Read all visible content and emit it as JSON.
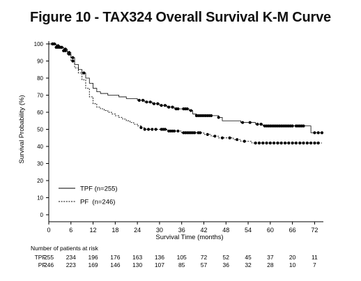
{
  "figure_title": "Figure 10 - TAX324 Overall Survival K-M Curve",
  "chart_data": {
    "type": "line",
    "title": "Figure 10 - TAX324 Overall Survival K-M Curve",
    "xlabel": "Survival Time (months)",
    "ylabel": "Survival Probability (%)",
    "xlim": [
      0,
      74
    ],
    "ylim": [
      0,
      100
    ],
    "x_ticks": [
      0,
      6,
      12,
      18,
      24,
      30,
      36,
      42,
      48,
      54,
      60,
      66,
      72
    ],
    "y_ticks": [
      0,
      10,
      20,
      30,
      40,
      50,
      60,
      70,
      80,
      90,
      100
    ],
    "grid": false,
    "legend_position": "bottom-left",
    "series": [
      {
        "name": "TPF (n=255)",
        "style": "solid",
        "points": [
          [
            0,
            100
          ],
          [
            2,
            99
          ],
          [
            3,
            98
          ],
          [
            4,
            97
          ],
          [
            5,
            95
          ],
          [
            6,
            92
          ],
          [
            7,
            88
          ],
          [
            8,
            85
          ],
          [
            9,
            83
          ],
          [
            10,
            80
          ],
          [
            11,
            77
          ],
          [
            12,
            74
          ],
          [
            13,
            72
          ],
          [
            14,
            71
          ],
          [
            15,
            71
          ],
          [
            16,
            70
          ],
          [
            18,
            70
          ],
          [
            19,
            69
          ],
          [
            20,
            69
          ],
          [
            21,
            68
          ],
          [
            22,
            68
          ],
          [
            24,
            67
          ],
          [
            26,
            66
          ],
          [
            28,
            65
          ],
          [
            30,
            64
          ],
          [
            32,
            63
          ],
          [
            34,
            62
          ],
          [
            36,
            62
          ],
          [
            38,
            61
          ],
          [
            39,
            59
          ],
          [
            40,
            58
          ],
          [
            44,
            58
          ],
          [
            46,
            57
          ],
          [
            47,
            55
          ],
          [
            49,
            55
          ],
          [
            52,
            54
          ],
          [
            54,
            54
          ],
          [
            56,
            53
          ],
          [
            58,
            52
          ],
          [
            66,
            52
          ],
          [
            70,
            52
          ],
          [
            71,
            48
          ],
          [
            74,
            48
          ]
        ],
        "censored_x": [
          1,
          1.5,
          2.5,
          3.5,
          4.5,
          5.5,
          6.5,
          9.5,
          24.5,
          25.5,
          26.5,
          27.5,
          28.5,
          29.5,
          30.5,
          31.5,
          32.5,
          33.5,
          34.5,
          35,
          36.5,
          37,
          37.5,
          38.5,
          40,
          40.5,
          41,
          41.5,
          42,
          42.5,
          43,
          43.5,
          44,
          46,
          52.5,
          54.5,
          56.5,
          57.5,
          58.5,
          59,
          59.5,
          60,
          60.5,
          61,
          61.5,
          62,
          62.5,
          63,
          63.5,
          64,
          64.5,
          65,
          65.5,
          66,
          67,
          67.5,
          68,
          68.5,
          69,
          72,
          73,
          74
        ]
      },
      {
        "name": "PF  (n=246)",
        "style": "dashed",
        "points": [
          [
            0,
            100
          ],
          [
            2,
            98
          ],
          [
            4,
            96
          ],
          [
            5,
            94
          ],
          [
            6,
            90
          ],
          [
            7,
            86
          ],
          [
            8,
            83
          ],
          [
            9,
            79
          ],
          [
            10,
            74
          ],
          [
            11,
            69
          ],
          [
            12,
            65
          ],
          [
            13,
            63
          ],
          [
            14,
            62
          ],
          [
            15,
            61
          ],
          [
            16,
            60
          ],
          [
            17,
            59
          ],
          [
            18,
            58
          ],
          [
            19,
            57
          ],
          [
            20,
            56
          ],
          [
            21,
            55
          ],
          [
            22,
            54
          ],
          [
            23,
            53
          ],
          [
            24,
            52
          ],
          [
            25,
            51
          ],
          [
            26,
            50
          ],
          [
            30,
            50
          ],
          [
            32,
            49
          ],
          [
            34,
            49
          ],
          [
            36,
            48
          ],
          [
            40,
            48
          ],
          [
            42,
            47
          ],
          [
            44,
            46
          ],
          [
            46,
            45
          ],
          [
            48,
            45
          ],
          [
            50,
            44
          ],
          [
            52,
            43
          ],
          [
            54,
            43
          ],
          [
            55,
            42
          ],
          [
            74,
            42
          ]
        ],
        "censored_x": [
          1,
          1.5,
          2,
          2.5,
          3,
          3.5,
          4,
          4.5,
          5.5,
          6.5,
          25,
          26,
          27,
          28,
          29,
          30.5,
          31,
          31.5,
          32.5,
          33,
          33.5,
          34,
          35,
          36.5,
          37,
          37.5,
          38,
          38.5,
          39,
          39.5,
          40.5,
          41,
          43,
          45,
          47,
          49,
          51,
          53,
          56,
          57,
          58,
          59,
          60,
          61,
          62,
          63,
          64,
          65,
          66,
          67,
          68,
          69,
          70,
          71,
          72,
          73
        ]
      }
    ],
    "risk_table": {
      "title": "Number of patients at risk",
      "times": [
        0,
        6,
        12,
        18,
        24,
        30,
        36,
        42,
        48,
        54,
        60,
        66,
        72
      ],
      "rows": [
        {
          "label": "TPF:",
          "counts": [
            255,
            234,
            196,
            176,
            163,
            136,
            105,
            72,
            52,
            45,
            37,
            20,
            11
          ]
        },
        {
          "label": "PF:",
          "counts": [
            246,
            223,
            169,
            146,
            130,
            107,
            85,
            57,
            36,
            32,
            28,
            10,
            7
          ]
        }
      ]
    }
  },
  "colors": {
    "line": "#000000",
    "axis": "#000000",
    "background": "#ffffff"
  }
}
